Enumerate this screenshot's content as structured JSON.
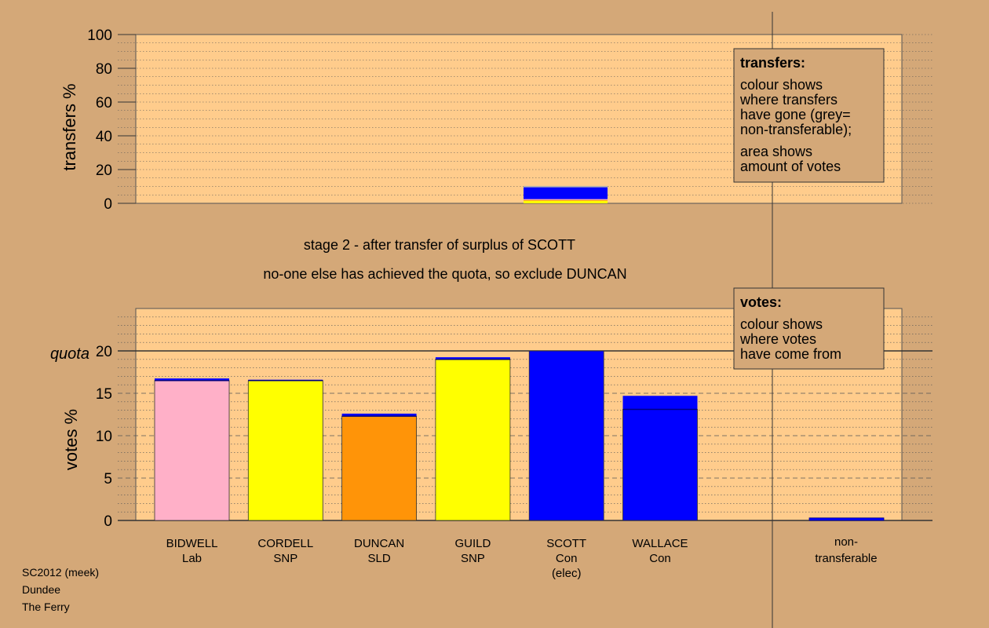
{
  "colors": {
    "background": "#d4a878",
    "panel": "#ffcc8c",
    "Lab": "#ffb0c8",
    "SNP": "#ffff00",
    "SLD": "#ff9408",
    "Con": "#0000ff",
    "grey": "#b3b3b3",
    "divider": "#000080"
  },
  "transfers_panel": {
    "ylabel": "transfers %",
    "ylim": [
      0,
      100
    ],
    "yticks": [
      "0",
      "20",
      "40",
      "60",
      "80",
      "100"
    ],
    "legend": {
      "title": "transfers:",
      "line1": "colour shows",
      "line2": "where transfers",
      "line3": "have gone (grey=",
      "line4": "non-transferable);",
      "line5": "area shows",
      "line6": "amount of votes"
    }
  },
  "stage_text": {
    "line1": "stage 2 - after transfer of surplus of SCOTT",
    "line2": "no-one else has achieved the quota, so exclude DUNCAN"
  },
  "votes_panel": {
    "ylabel": "votes %",
    "ylim": [
      0,
      25
    ],
    "yticks": [
      "0",
      "5",
      "10",
      "15",
      "20"
    ],
    "quota_label": "quota",
    "quota": 20,
    "legend": {
      "title": "votes:",
      "line1": "colour shows",
      "line2": "where votes",
      "line3": "have come from"
    }
  },
  "chart_data": [
    {
      "type": "bar",
      "panel": "transfers",
      "ylabel": "transfers %",
      "ylim": [
        0,
        100
      ],
      "categories": [
        "SCOTT"
      ],
      "stack": [
        {
          "party": "SNP",
          "value": 1.5
        },
        {
          "party": "SLD",
          "value": 0.5
        },
        {
          "party": "Lab",
          "value": 0.5
        },
        {
          "party": "Con",
          "value": 7.0
        },
        {
          "party": "grey",
          "value": 0.8
        }
      ]
    },
    {
      "type": "bar",
      "panel": "votes",
      "ylabel": "votes %",
      "ylim": [
        0,
        25
      ],
      "quota": 20,
      "categories": [
        {
          "name": "BIDWELL",
          "party": "Lab",
          "elected": ""
        },
        {
          "name": "CORDELL",
          "party": "SNP",
          "elected": ""
        },
        {
          "name": "DUNCAN",
          "party": "SLD",
          "elected": ""
        },
        {
          "name": "GUILD",
          "party": "SNP",
          "elected": ""
        },
        {
          "name": "SCOTT",
          "party": "Con",
          "elected": "(elec)"
        },
        {
          "name": "WALLACE",
          "party": "Con",
          "elected": ""
        }
      ],
      "values": [
        {
          "base": 16.5,
          "base_party": "Lab",
          "transfer": 0.25
        },
        {
          "base": 16.5,
          "base_party": "SNP",
          "transfer": 0.1
        },
        {
          "base": 12.3,
          "base_party": "SLD",
          "transfer": 0.3
        },
        {
          "base": 19.0,
          "base_party": "SNP",
          "transfer": 0.25
        },
        {
          "base": 20.0,
          "base_party": "Con",
          "transfer": 0
        },
        {
          "base": 13.1,
          "base_party": "Con",
          "transfer": 1.6
        }
      ],
      "non_transferable": {
        "label_line1": "non-",
        "label_line2": "transferable",
        "value": 0.3
      }
    }
  ],
  "footer": {
    "line1": "SC2012 (meek)",
    "line2": "Dundee",
    "line3": "The Ferry"
  }
}
